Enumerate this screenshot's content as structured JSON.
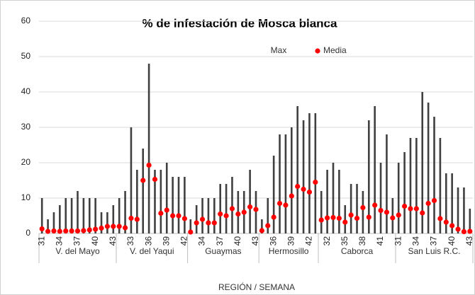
{
  "chart_data": {
    "type": "range-dot",
    "title": "% de infestación de Mosca blanca",
    "x_label": "REGIÓN / SEMANA",
    "groups": [
      {
        "label": "V. del Mayo",
        "categories": [
          "31",
          null,
          null,
          "34",
          null,
          null,
          "37",
          null,
          null,
          "40",
          null,
          null,
          "43"
        ]
      },
      {
        "label": "V. del Yaqui",
        "categories": [
          null,
          null,
          "33",
          null,
          null,
          "36",
          null,
          null,
          "39",
          null,
          null,
          "42"
        ]
      },
      {
        "label": "Guaymas",
        "categories": [
          null,
          null,
          "34",
          null,
          null,
          "37",
          null,
          null,
          "40",
          null,
          null,
          "43"
        ]
      },
      {
        "label": "Hermosillo",
        "categories": [
          null,
          null,
          "36",
          null,
          null,
          "39",
          null,
          null,
          "42",
          null
        ]
      },
      {
        "label": "Caborca",
        "categories": [
          null,
          "32",
          null,
          null,
          "35",
          null,
          null,
          "38",
          null,
          null,
          "41",
          null,
          null
        ]
      },
      {
        "label": "San Luis R.C.",
        "categories": [
          "31",
          null,
          null,
          "34",
          null,
          null,
          "37",
          null,
          null,
          "40",
          null,
          null,
          "43"
        ]
      }
    ],
    "series": [
      {
        "name": "Max",
        "color": "#404040",
        "values": [
          10,
          4,
          6,
          8,
          10,
          10,
          12,
          10,
          10,
          10,
          6,
          6,
          8,
          10,
          12,
          30,
          18,
          24,
          48,
          18,
          18,
          20,
          16,
          16,
          16,
          4,
          8,
          10,
          10,
          10,
          14,
          14,
          16,
          12,
          12,
          18,
          12,
          4,
          10,
          22,
          28,
          28,
          30,
          36,
          32,
          34,
          34,
          12,
          18,
          20,
          18,
          8,
          14,
          14,
          12,
          32,
          36,
          20,
          28,
          10,
          20,
          23,
          27,
          27,
          40,
          37,
          33,
          27,
          17,
          17,
          13,
          13,
          7
        ]
      },
      {
        "name": "Media",
        "color": "#ff0000",
        "values": [
          1.3,
          0.6,
          0.7,
          0.6,
          0.7,
          0.7,
          0.7,
          0.8,
          1,
          1.2,
          1.5,
          2,
          2,
          2,
          1.6,
          4.3,
          4,
          15,
          19.3,
          15.3,
          5.7,
          6.6,
          5,
          5,
          4.2,
          0.4,
          3,
          4,
          3,
          3,
          5.5,
          5,
          7,
          5.5,
          6,
          7.5,
          6.8,
          0.8,
          2.2,
          4.6,
          8.5,
          8,
          10.6,
          13.3,
          12.5,
          11.7,
          14.5,
          3.8,
          4.4,
          4.5,
          4.3,
          3.2,
          5.2,
          4.3,
          7.3,
          4.6,
          8,
          6.5,
          6,
          4.4,
          5.2,
          7.7,
          7,
          7,
          5.8,
          8.5,
          9.3,
          4.2,
          3.2,
          2.2,
          1.2,
          0.5,
          0.6
        ]
      }
    ],
    "ylim": [
      0,
      60
    ],
    "yticks": [
      0,
      10,
      20,
      30,
      40,
      50,
      60
    ],
    "grid": true
  }
}
